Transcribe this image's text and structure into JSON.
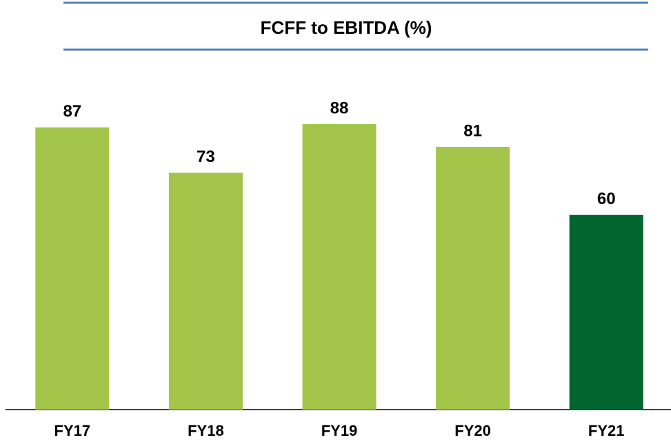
{
  "chart_data": {
    "type": "bar",
    "title": "FCFF to EBITDA (%)",
    "categories": [
      "FY17",
      "FY18",
      "FY19",
      "FY20",
      "FY21"
    ],
    "values": [
      87,
      73,
      88,
      81,
      60
    ],
    "colors": [
      "#a3c64a",
      "#a3c64a",
      "#a3c64a",
      "#a3c64a",
      "#00652e"
    ]
  }
}
